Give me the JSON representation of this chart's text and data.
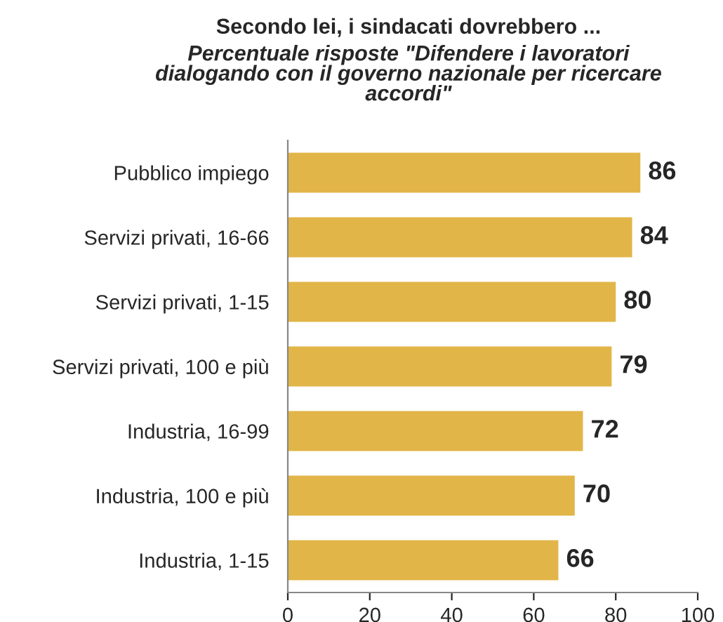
{
  "chart_data": {
    "type": "bar",
    "orientation": "horizontal",
    "title": "Secondo lei, i sindacati dovrebbero ...",
    "subtitle": "Percentuale risposte \"Difendere i lavoratori\ndialogando con il governo nazionale per ricercare\naccordi\"",
    "categories": [
      "Pubblico impiego",
      "Servizi privati, 16-66",
      "Servizi privati, 1-15",
      "Servizi privati, 100 e più",
      "Industria, 16-99",
      "Industria, 100 e più",
      "Industria, 1-15"
    ],
    "values": [
      86,
      84,
      80,
      79,
      72,
      70,
      66
    ],
    "color": "#e1b548",
    "xlim": [
      0,
      100
    ],
    "xticks": [
      0,
      20,
      40,
      60,
      80,
      100
    ],
    "data_labels": true,
    "grid": false
  }
}
